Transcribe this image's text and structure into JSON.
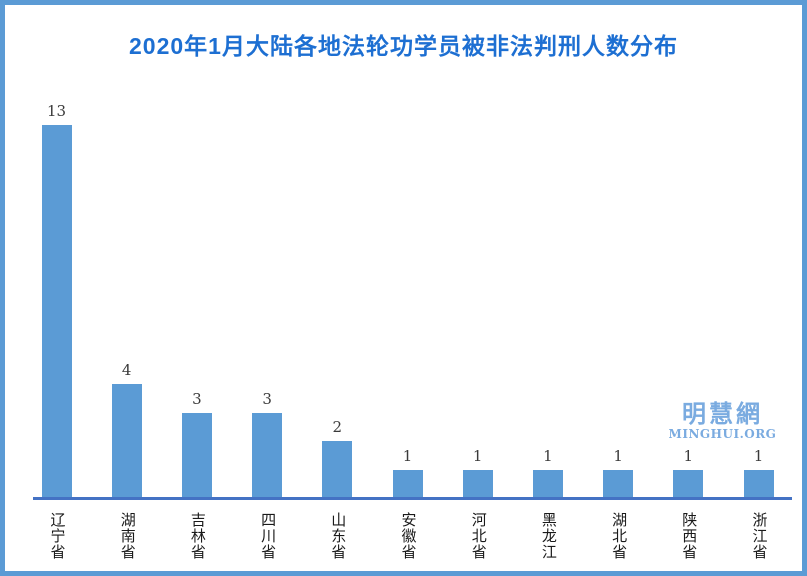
{
  "page": {
    "background": "#ffffff",
    "border_color": "#5b9bd5"
  },
  "title_color": "#1d6fd2",
  "watermark": {
    "cjk": "明慧網",
    "latin": "MINGHUI.ORG",
    "color": "#7aabe0"
  },
  "chart_data": {
    "type": "bar",
    "title": "2020年1月大陆各地法轮功学员被非法判刑人数分布",
    "categories": [
      "辽宁省",
      "湖南省",
      "吉林省",
      "四川省",
      "山东省",
      "安徽省",
      "河北省",
      "黑龙江",
      "湖北省",
      "陕西省",
      "浙江省"
    ],
    "values": [
      13,
      4,
      3,
      3,
      2,
      1,
      1,
      1,
      1,
      1,
      1
    ],
    "xlabel": "",
    "ylabel": "",
    "ylim": [
      0,
      13.5
    ],
    "grid": false,
    "legend": false,
    "value_labels_shown": true,
    "bar_color": "#5b9bd5",
    "axis_color": "#4472c4",
    "value_label_color": "#3a3a3a"
  }
}
